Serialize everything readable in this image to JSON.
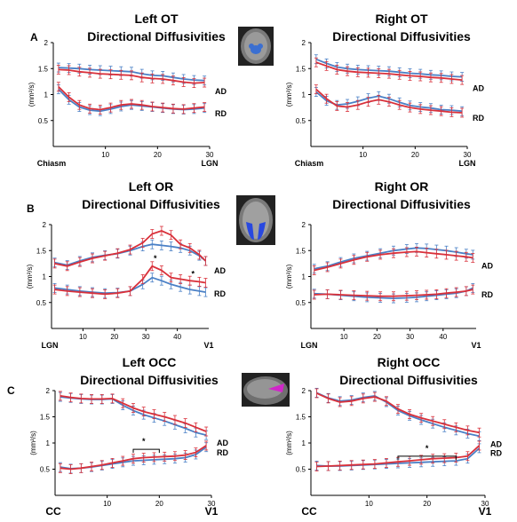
{
  "colors": {
    "red": "#d9303a",
    "blue": "#4a80c6",
    "axis": "#000000"
  },
  "panel_labels": [
    "A",
    "B",
    "C"
  ],
  "brain_icons": [
    "brain-axial-ot-icon",
    "brain-axial-or-icon",
    "brain-sagittal-occ-icon"
  ],
  "chart_data": [
    {
      "type": "line",
      "title": "Left OT",
      "subtitle": "Directional Diffusivities",
      "ylabel": "(mm²/s)",
      "xlim": [
        0,
        30
      ],
      "ylim": [
        0,
        2
      ],
      "xticks": [
        10,
        20,
        30
      ],
      "yticks": [
        0.5,
        1,
        1.5,
        2
      ],
      "ytick_labels": [
        "0.5",
        "1",
        "1.5",
        "2"
      ],
      "x_start_label": "Chiasm",
      "x_end_label": "LGN",
      "grid": false,
      "x": [
        1,
        3,
        5,
        7,
        9,
        11,
        13,
        15,
        17,
        19,
        21,
        23,
        25,
        27,
        29
      ],
      "series": [
        {
          "name": "AD",
          "color": "red",
          "values": [
            1.48,
            1.47,
            1.44,
            1.42,
            1.4,
            1.39,
            1.38,
            1.37,
            1.33,
            1.31,
            1.3,
            1.27,
            1.24,
            1.22,
            1.23
          ]
        },
        {
          "name": "AD",
          "color": "blue",
          "values": [
            1.52,
            1.51,
            1.5,
            1.48,
            1.47,
            1.46,
            1.45,
            1.44,
            1.4,
            1.37,
            1.36,
            1.33,
            1.3,
            1.28,
            1.27
          ]
        },
        {
          "name": "RD",
          "color": "red",
          "values": [
            1.15,
            0.95,
            0.8,
            0.73,
            0.71,
            0.75,
            0.8,
            0.82,
            0.8,
            0.77,
            0.75,
            0.73,
            0.72,
            0.74,
            0.76
          ]
        },
        {
          "name": "RD",
          "color": "blue",
          "values": [
            1.1,
            0.9,
            0.76,
            0.7,
            0.68,
            0.72,
            0.77,
            0.8,
            0.78,
            0.76,
            0.74,
            0.72,
            0.71,
            0.72,
            0.74
          ]
        }
      ],
      "series_labels": [
        "AD",
        "RD"
      ],
      "annotations": []
    },
    {
      "type": "line",
      "title": "Right OT",
      "subtitle": "Directional Diffusivities",
      "ylabel": "(mm²/s)",
      "xlim": [
        0,
        30
      ],
      "ylim": [
        0,
        2
      ],
      "xticks": [
        10,
        20,
        30
      ],
      "yticks": [
        0.5,
        1,
        1.5,
        2
      ],
      "ytick_labels": [
        "0.5",
        "1",
        "1.5",
        "2"
      ],
      "x_start_label": "Chiasm",
      "x_end_label": "LGN",
      "grid": false,
      "x": [
        1,
        3,
        5,
        7,
        9,
        11,
        13,
        15,
        17,
        19,
        21,
        23,
        25,
        27,
        29
      ],
      "series": [
        {
          "name": "AD",
          "color": "red",
          "values": [
            1.62,
            1.55,
            1.48,
            1.45,
            1.43,
            1.42,
            1.41,
            1.4,
            1.38,
            1.36,
            1.35,
            1.33,
            1.32,
            1.3,
            1.28
          ]
        },
        {
          "name": "AD",
          "color": "blue",
          "values": [
            1.68,
            1.6,
            1.53,
            1.5,
            1.48,
            1.47,
            1.46,
            1.45,
            1.43,
            1.41,
            1.4,
            1.38,
            1.37,
            1.35,
            1.34
          ]
        },
        {
          "name": "RD",
          "color": "red",
          "values": [
            1.1,
            0.92,
            0.78,
            0.76,
            0.8,
            0.86,
            0.9,
            0.86,
            0.8,
            0.75,
            0.72,
            0.7,
            0.68,
            0.66,
            0.65
          ]
        },
        {
          "name": "RD",
          "color": "blue",
          "values": [
            1.05,
            0.88,
            0.8,
            0.82,
            0.87,
            0.93,
            0.97,
            0.92,
            0.85,
            0.79,
            0.76,
            0.74,
            0.71,
            0.7,
            0.68
          ]
        }
      ],
      "series_labels": [
        "AD",
        "RD"
      ],
      "annotations": []
    },
    {
      "type": "line",
      "title": "Left OR",
      "subtitle": "Directional Diffusivities",
      "ylabel": "(mm²/s)",
      "xlim": [
        0,
        50
      ],
      "ylim": [
        0,
        2
      ],
      "xticks": [
        10,
        20,
        30,
        40
      ],
      "yticks": [
        0.5,
        1,
        1.5,
        2
      ],
      "ytick_labels": [
        "0.5",
        "1",
        "1.5",
        "2"
      ],
      "x_start_label": "LGN",
      "x_end_label": "V1",
      "grid": false,
      "x": [
        1,
        5,
        9,
        13,
        17,
        21,
        25,
        29,
        32,
        35,
        38,
        41,
        44,
        47,
        49
      ],
      "series": [
        {
          "name": "AD",
          "color": "red",
          "values": [
            1.25,
            1.2,
            1.28,
            1.35,
            1.4,
            1.45,
            1.52,
            1.65,
            1.82,
            1.88,
            1.8,
            1.62,
            1.55,
            1.42,
            1.3
          ]
        },
        {
          "name": "AD",
          "color": "blue",
          "values": [
            1.27,
            1.22,
            1.3,
            1.37,
            1.41,
            1.44,
            1.5,
            1.58,
            1.62,
            1.6,
            1.58,
            1.55,
            1.5,
            1.4,
            1.3
          ]
        },
        {
          "name": "RD",
          "color": "red",
          "values": [
            0.75,
            0.72,
            0.7,
            0.68,
            0.66,
            0.68,
            0.72,
            0.95,
            1.2,
            1.12,
            0.98,
            0.95,
            0.92,
            0.9,
            0.88
          ]
        },
        {
          "name": "RD",
          "color": "blue",
          "values": [
            0.78,
            0.75,
            0.72,
            0.7,
            0.68,
            0.69,
            0.72,
            0.85,
            0.98,
            0.92,
            0.85,
            0.8,
            0.75,
            0.72,
            0.7
          ]
        }
      ],
      "series_labels": [
        "AD",
        "RD"
      ],
      "annotations": [
        {
          "text": "*",
          "x": 33,
          "y": 1.3
        },
        {
          "text": "*",
          "x": 45,
          "y": 1.0
        }
      ]
    },
    {
      "type": "line",
      "title": "Right OR",
      "subtitle": "Directional Diffusivities",
      "ylabel": "(mm²/s)",
      "xlim": [
        0,
        50
      ],
      "ylim": [
        0,
        2
      ],
      "xticks": [
        10,
        20,
        30,
        40
      ],
      "yticks": [
        0.5,
        1,
        1.5,
        2
      ],
      "ytick_labels": [
        "0.5",
        "1",
        "1.5",
        "2"
      ],
      "x_start_label": "LGN",
      "x_end_label": "V1",
      "grid": false,
      "x": [
        1,
        5,
        9,
        13,
        17,
        21,
        25,
        29,
        32,
        35,
        38,
        41,
        44,
        47,
        49
      ],
      "series": [
        {
          "name": "AD",
          "color": "red",
          "values": [
            1.12,
            1.18,
            1.25,
            1.32,
            1.38,
            1.42,
            1.45,
            1.47,
            1.48,
            1.46,
            1.44,
            1.42,
            1.4,
            1.38,
            1.36
          ]
        },
        {
          "name": "AD",
          "color": "blue",
          "values": [
            1.15,
            1.2,
            1.28,
            1.35,
            1.4,
            1.45,
            1.5,
            1.53,
            1.55,
            1.54,
            1.52,
            1.5,
            1.47,
            1.44,
            1.42
          ]
        },
        {
          "name": "RD",
          "color": "red",
          "values": [
            0.65,
            0.66,
            0.65,
            0.64,
            0.63,
            0.62,
            0.62,
            0.63,
            0.64,
            0.65,
            0.66,
            0.68,
            0.7,
            0.72,
            0.75
          ]
        },
        {
          "name": "RD",
          "color": "blue",
          "values": [
            0.67,
            0.66,
            0.64,
            0.62,
            0.6,
            0.59,
            0.58,
            0.59,
            0.6,
            0.62,
            0.64,
            0.66,
            0.68,
            0.72,
            0.78
          ]
        }
      ],
      "series_labels": [
        "AD",
        "RD"
      ],
      "annotations": []
    },
    {
      "type": "line",
      "title": "Left OCC",
      "subtitle": "Directional Diffusivities",
      "ylabel": "(mm²/s)",
      "xlim": [
        0,
        30
      ],
      "ylim": [
        0,
        2
      ],
      "xticks": [
        10,
        20,
        30
      ],
      "yticks": [
        0.5,
        1,
        1.5,
        2
      ],
      "ytick_labels": [
        "0.5",
        "1",
        "1.5",
        "2"
      ],
      "x_start_label": "CC",
      "x_end_label": "V1",
      "grid": false,
      "x": [
        1,
        3,
        5,
        7,
        9,
        11,
        13,
        15,
        17,
        19,
        21,
        23,
        25,
        27,
        29
      ],
      "series": [
        {
          "name": "AD",
          "color": "red",
          "values": [
            1.9,
            1.87,
            1.85,
            1.84,
            1.84,
            1.85,
            1.76,
            1.67,
            1.6,
            1.55,
            1.5,
            1.44,
            1.38,
            1.3,
            1.22
          ]
        },
        {
          "name": "AD",
          "color": "blue",
          "values": [
            1.88,
            1.86,
            1.84,
            1.83,
            1.83,
            1.84,
            1.72,
            1.62,
            1.54,
            1.48,
            1.42,
            1.35,
            1.28,
            1.2,
            1.15
          ]
        },
        {
          "name": "RD",
          "color": "red",
          "values": [
            0.52,
            0.5,
            0.52,
            0.55,
            0.58,
            0.62,
            0.66,
            0.7,
            0.72,
            0.73,
            0.74,
            0.75,
            0.77,
            0.82,
            0.95
          ]
        },
        {
          "name": "RD",
          "color": "blue",
          "values": [
            0.54,
            0.51,
            0.52,
            0.54,
            0.57,
            0.6,
            0.63,
            0.66,
            0.67,
            0.68,
            0.69,
            0.7,
            0.72,
            0.78,
            0.92
          ]
        }
      ],
      "series_labels": [
        "AD",
        "RD"
      ],
      "annotations": [
        {
          "text": "*",
          "x": 17,
          "y": 0.98,
          "bracket": [
            15,
            20
          ]
        }
      ]
    },
    {
      "type": "line",
      "title": "Right OCC",
      "subtitle": "Directional Diffusivities",
      "ylabel": "(mm²/s)",
      "xlim": [
        0,
        30
      ],
      "ylim": [
        0,
        2
      ],
      "xticks": [
        10,
        20,
        30
      ],
      "yticks": [
        0.5,
        1,
        1.5,
        2
      ],
      "ytick_labels": [
        "0.5",
        "1",
        "1.5",
        "2"
      ],
      "x_start_label": "CC",
      "x_end_label": "V1",
      "grid": false,
      "x": [
        1,
        3,
        5,
        7,
        9,
        11,
        13,
        15,
        17,
        19,
        21,
        23,
        25,
        27,
        29
      ],
      "series": [
        {
          "name": "AD",
          "color": "red",
          "values": [
            1.95,
            1.85,
            1.78,
            1.8,
            1.85,
            1.88,
            1.8,
            1.65,
            1.55,
            1.48,
            1.42,
            1.36,
            1.3,
            1.24,
            1.2
          ]
        },
        {
          "name": "AD",
          "color": "blue",
          "values": [
            1.96,
            1.86,
            1.8,
            1.82,
            1.87,
            1.9,
            1.78,
            1.62,
            1.52,
            1.44,
            1.37,
            1.3,
            1.24,
            1.18,
            1.13
          ]
        },
        {
          "name": "RD",
          "color": "red",
          "values": [
            0.55,
            0.56,
            0.57,
            0.58,
            0.59,
            0.6,
            0.62,
            0.64,
            0.66,
            0.68,
            0.7,
            0.71,
            0.72,
            0.75,
            0.95
          ]
        },
        {
          "name": "RD",
          "color": "blue",
          "values": [
            0.57,
            0.56,
            0.56,
            0.57,
            0.58,
            0.59,
            0.6,
            0.61,
            0.62,
            0.63,
            0.64,
            0.65,
            0.66,
            0.7,
            0.9
          ]
        }
      ],
      "series_labels": [
        "AD",
        "RD"
      ],
      "annotations": [
        {
          "text": "*",
          "x": 20,
          "y": 0.85,
          "bracket": [
            15,
            25
          ]
        }
      ]
    }
  ]
}
